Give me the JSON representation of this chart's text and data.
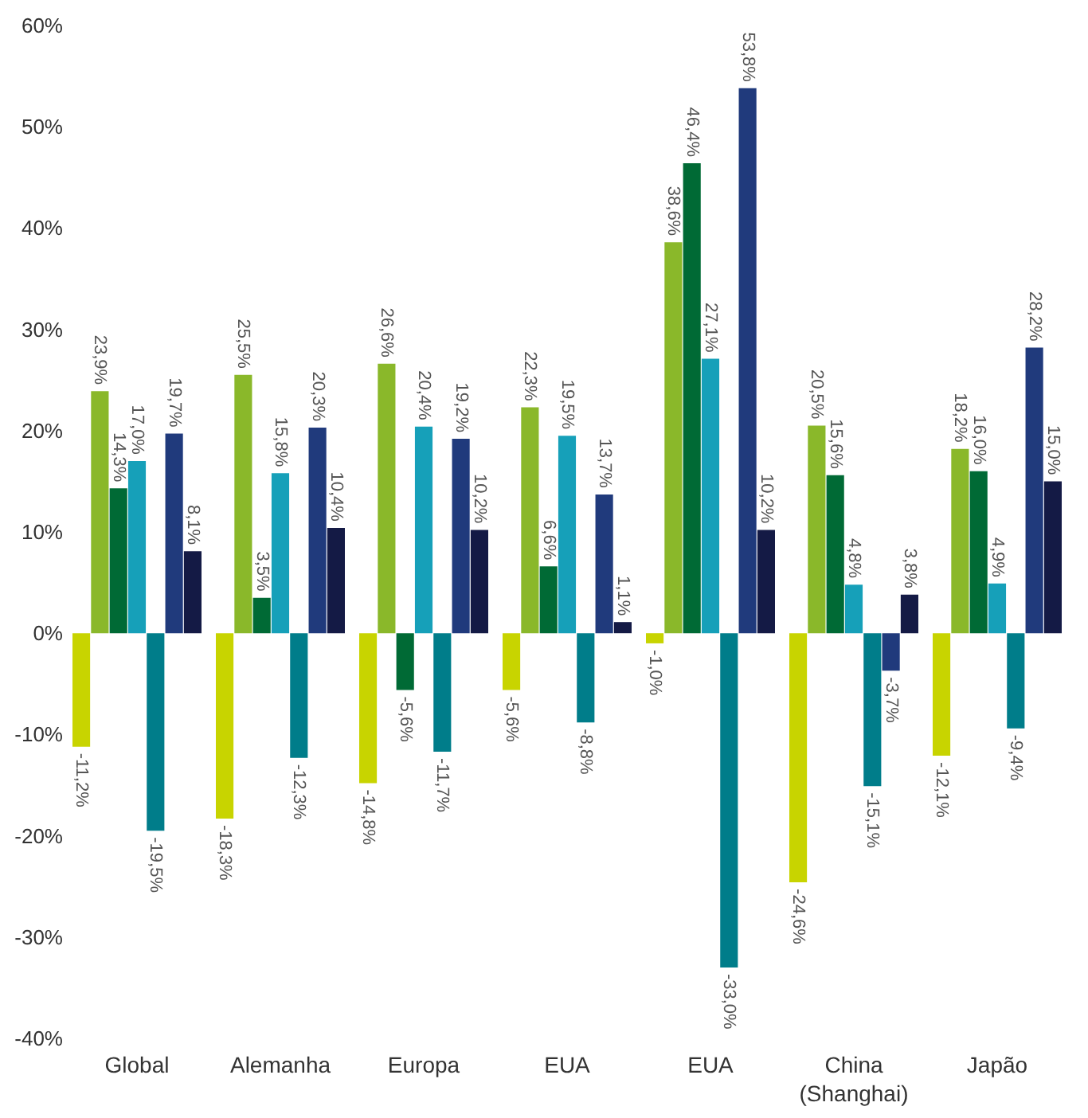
{
  "chart_data": {
    "type": "bar",
    "categories": [
      "Global",
      "Alemanha",
      "Europa",
      "EUA",
      "EUA",
      "China\n(Shanghai)",
      "Japão"
    ],
    "series": [
      {
        "color": "#c8d400",
        "values": [
          -11.2,
          -18.3,
          -14.8,
          -5.6,
          -1.0,
          -24.6,
          -12.1
        ],
        "value_labels": [
          "-11,2%",
          "-18,3%",
          "-14,8%",
          "-5,6%",
          "-1,0%",
          "-24,6%",
          "-12,1%"
        ]
      },
      {
        "color": "#8ab82a",
        "values": [
          23.9,
          25.5,
          26.6,
          22.3,
          38.6,
          20.5,
          18.2
        ],
        "value_labels": [
          "23,9%",
          "25,5%",
          "26,6%",
          "22,3%",
          "38,6%",
          "20,5%",
          "18,2%"
        ]
      },
      {
        "color": "#006a35",
        "values": [
          14.3,
          3.5,
          -5.6,
          6.6,
          46.4,
          15.6,
          16.0
        ],
        "value_labels": [
          "14,3%",
          "3,5%",
          "-5,6%",
          "6,6%",
          "46,4%",
          "15,6%",
          "16,0%"
        ]
      },
      {
        "color": "#16a0b9",
        "values": [
          17.0,
          15.8,
          20.4,
          19.5,
          27.1,
          4.8,
          4.9
        ],
        "value_labels": [
          "17,0%",
          "15,8%",
          "20,4%",
          "19,5%",
          "27,1%",
          "4,8%",
          "4,9%"
        ]
      },
      {
        "color": "#007d8a",
        "values": [
          -19.5,
          -12.3,
          -11.7,
          -8.8,
          -33.0,
          -15.1,
          -9.4
        ],
        "value_labels": [
          "-19,5%",
          "-12,3%",
          "-11,7%",
          "-8,8%",
          "-33,0%",
          "-15,1%",
          "-9,4%"
        ]
      },
      {
        "color": "#203a7c",
        "values": [
          19.7,
          20.3,
          19.2,
          13.7,
          53.8,
          -3.7,
          28.2
        ],
        "value_labels": [
          "19,7%",
          "20,3%",
          "19,2%",
          "13,7%",
          "53,8%",
          "-3,7%",
          "28,2%"
        ]
      },
      {
        "color": "#141a45",
        "values": [
          8.1,
          10.4,
          10.2,
          1.1,
          10.2,
          3.8,
          15.0
        ],
        "value_labels": [
          "8,1%",
          "10,4%",
          "10,2%",
          "1,1%",
          "10,2%",
          "3,8%",
          "15,0%"
        ]
      }
    ],
    "ylim": [
      -40,
      60
    ],
    "yticks": [
      {
        "value": -40,
        "label": "-40%"
      },
      {
        "value": -30,
        "label": "-30%"
      },
      {
        "value": -20,
        "label": "-20%"
      },
      {
        "value": -10,
        "label": "-10%"
      },
      {
        "value": 0,
        "label": "0%"
      },
      {
        "value": 10,
        "label": "10%"
      },
      {
        "value": 20,
        "label": "20%"
      },
      {
        "value": 30,
        "label": "30%"
      },
      {
        "value": 40,
        "label": "40%"
      },
      {
        "value": 50,
        "label": "50%"
      },
      {
        "value": 60,
        "label": "60%"
      }
    ],
    "grid": false,
    "legend": false
  }
}
